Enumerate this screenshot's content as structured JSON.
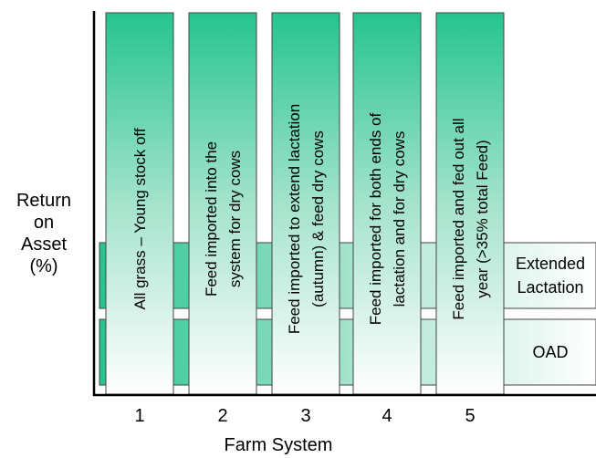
{
  "y_axis_label": [
    "Return",
    "on",
    "Asset",
    "(%)"
  ],
  "x_axis_label": "Farm System",
  "systems": [
    {
      "number": "1",
      "lines": [
        "All grass – Young stock off"
      ]
    },
    {
      "number": "2",
      "lines": [
        "Feed imported into the",
        "system for dry cows"
      ]
    },
    {
      "number": "3",
      "lines": [
        "Feed imported to extend lactation",
        "(autumn) & feed dry cows"
      ]
    },
    {
      "number": "4",
      "lines": [
        "Feed imported for both ends of",
        "lactation and for dry cows"
      ]
    },
    {
      "number": "5",
      "lines": [
        "Feed imported and fed out all",
        "year (>35% total Feed)"
      ]
    }
  ],
  "bands": [
    {
      "lines": [
        "Extended",
        "Lactation"
      ]
    },
    {
      "lines": [
        "OAD"
      ]
    }
  ],
  "colors": {
    "accent": "#25c490",
    "light": "#ffffff",
    "axis": "#000000"
  }
}
